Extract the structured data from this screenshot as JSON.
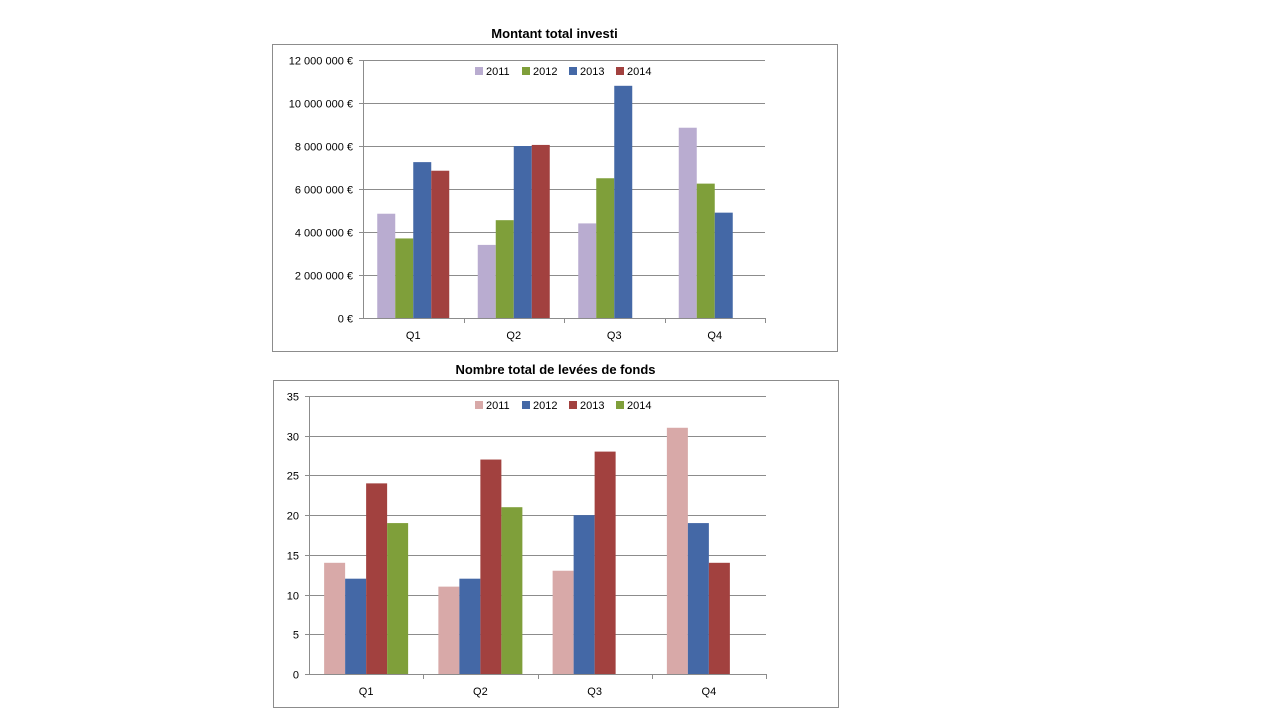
{
  "chart_data": [
    {
      "type": "bar",
      "title": "Montant total investi",
      "xlabel": "",
      "ylabel": "",
      "categories": [
        "Q1",
        "Q2",
        "Q3",
        "Q4"
      ],
      "ylim": [
        0,
        12000000
      ],
      "yticks": [
        {
          "value": 0,
          "label": "0 €"
        },
        {
          "value": 2000000,
          "label": "2 000 000 €"
        },
        {
          "value": 4000000,
          "label": "4 000 000 €"
        },
        {
          "value": 6000000,
          "label": "6 000 000 €"
        },
        {
          "value": 8000000,
          "label": "8 000 000 €"
        },
        {
          "value": 10000000,
          "label": "10 000 000 €"
        },
        {
          "value": 12000000,
          "label": "12 000 000 €"
        }
      ],
      "grid": true,
      "legend_position": "top-center",
      "series": [
        {
          "name": "2011",
          "color": "#b9acd0",
          "values": [
            4850000,
            3400000,
            4400000,
            8850000
          ]
        },
        {
          "name": "2012",
          "color": "#7f9f3a",
          "values": [
            3700000,
            4550000,
            6500000,
            6250000
          ]
        },
        {
          "name": "2013",
          "color": "#4468a6",
          "values": [
            7250000,
            8000000,
            10800000,
            4900000
          ]
        },
        {
          "name": "2014",
          "color": "#a2413f",
          "values": [
            6850000,
            8050000,
            null,
            null
          ]
        }
      ]
    },
    {
      "type": "bar",
      "title": "Nombre total de levées de fonds",
      "xlabel": "",
      "ylabel": "",
      "categories": [
        "Q1",
        "Q2",
        "Q3",
        "Q4"
      ],
      "ylim": [
        0,
        35
      ],
      "yticks": [
        {
          "value": 0,
          "label": "0"
        },
        {
          "value": 5,
          "label": "5"
        },
        {
          "value": 10,
          "label": "10"
        },
        {
          "value": 15,
          "label": "15"
        },
        {
          "value": 20,
          "label": "20"
        },
        {
          "value": 25,
          "label": "25"
        },
        {
          "value": 30,
          "label": "30"
        },
        {
          "value": 35,
          "label": "35"
        }
      ],
      "grid": true,
      "legend_position": "top-center",
      "series": [
        {
          "name": "2011",
          "color": "#d8a9a8",
          "values": [
            14,
            11,
            13,
            31
          ]
        },
        {
          "name": "2012",
          "color": "#4468a6",
          "values": [
            12,
            12,
            20,
            19
          ]
        },
        {
          "name": "2013",
          "color": "#a2413f",
          "values": [
            24,
            27,
            28,
            14
          ]
        },
        {
          "name": "2014",
          "color": "#7f9f3a",
          "values": [
            19,
            21,
            null,
            null
          ]
        }
      ]
    }
  ]
}
